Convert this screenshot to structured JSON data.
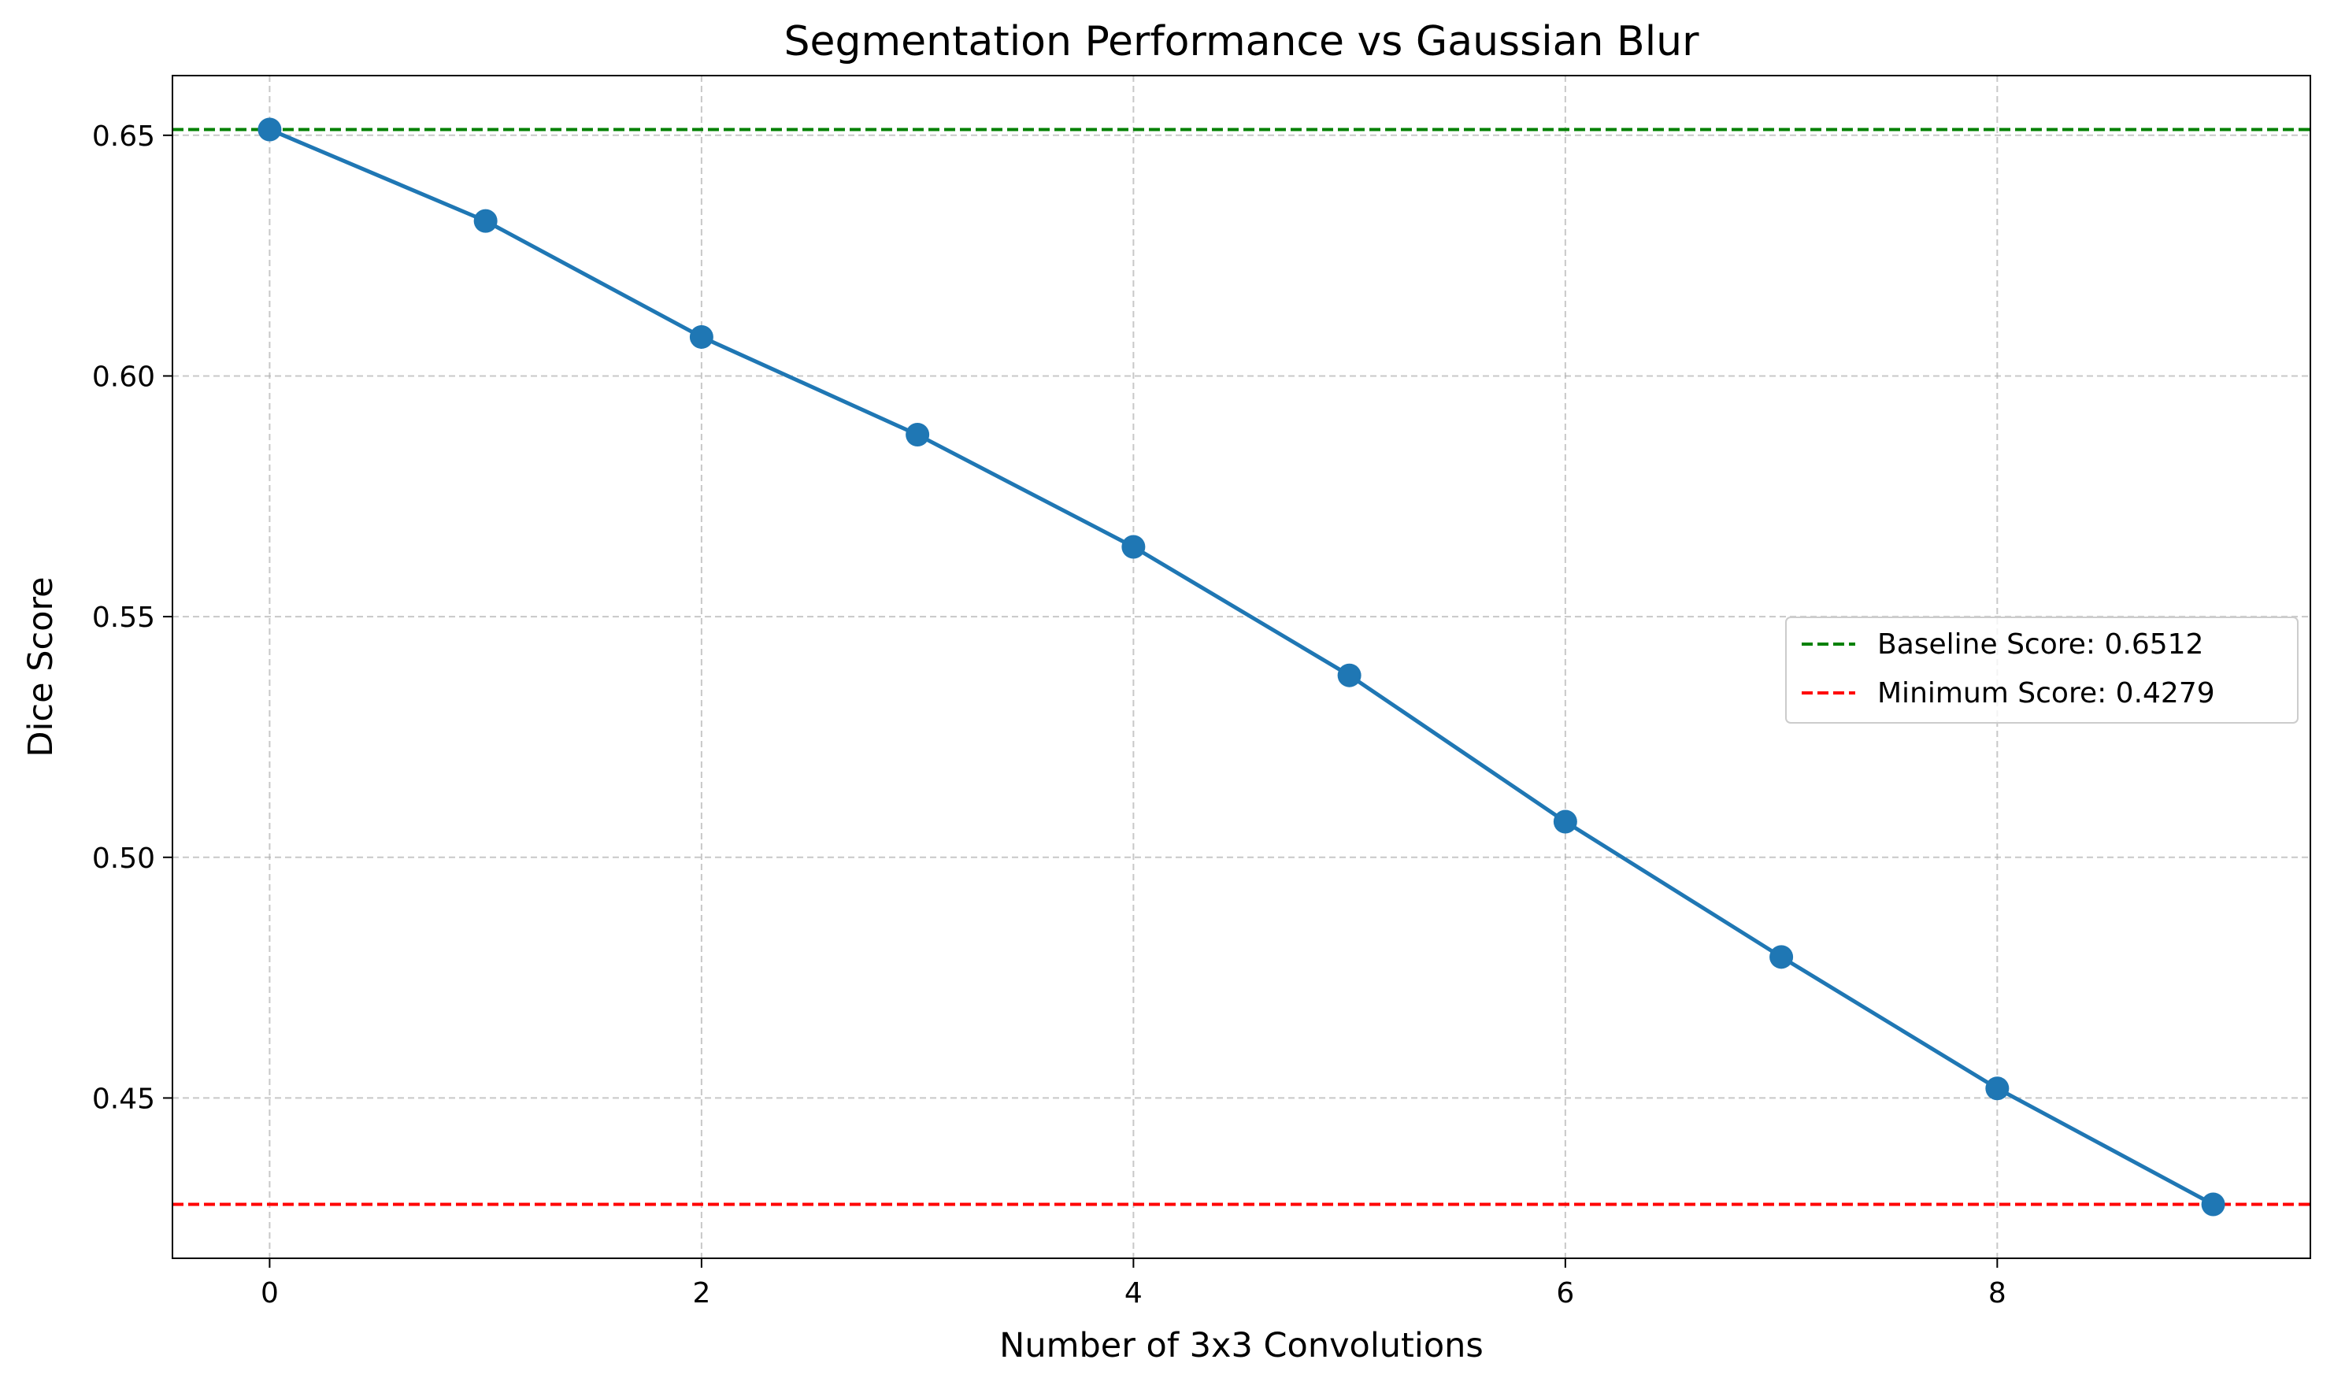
{
  "chart_data": {
    "type": "line",
    "title": "Segmentation Performance vs Gaussian Blur",
    "xlabel": "Number of 3x3 Convolutions",
    "ylabel": "Dice Score",
    "xlim": [
      -0.45,
      9.45
    ],
    "ylim": [
      0.4167,
      0.6624
    ],
    "grid": true,
    "legend_position": "center-right",
    "x_ticks": [
      0,
      2,
      4,
      6,
      8
    ],
    "x_tick_labels": [
      "0",
      "2",
      "4",
      "6",
      "8"
    ],
    "y_ticks": [
      0.45,
      0.5,
      0.55,
      0.6,
      0.65
    ],
    "y_tick_labels": [
      "0.45",
      "0.50",
      "0.55",
      "0.60",
      "0.65"
    ],
    "series": [
      {
        "color": "#1f77b4",
        "x": [
          0,
          1,
          2,
          3,
          4,
          5,
          6,
          7,
          8,
          9
        ],
        "values": [
          0.6512,
          0.6322,
          0.6081,
          0.5878,
          0.5645,
          0.5378,
          0.5074,
          0.4793,
          0.452,
          0.4279
        ]
      }
    ],
    "reference_lines": [
      {
        "name": "Baseline Score: 0.6512",
        "value": 0.6512,
        "color": "#008000",
        "style": "dashed"
      },
      {
        "name": "Minimum Score: 0.4279",
        "value": 0.4279,
        "color": "#ff0000",
        "style": "dashed"
      }
    ]
  }
}
